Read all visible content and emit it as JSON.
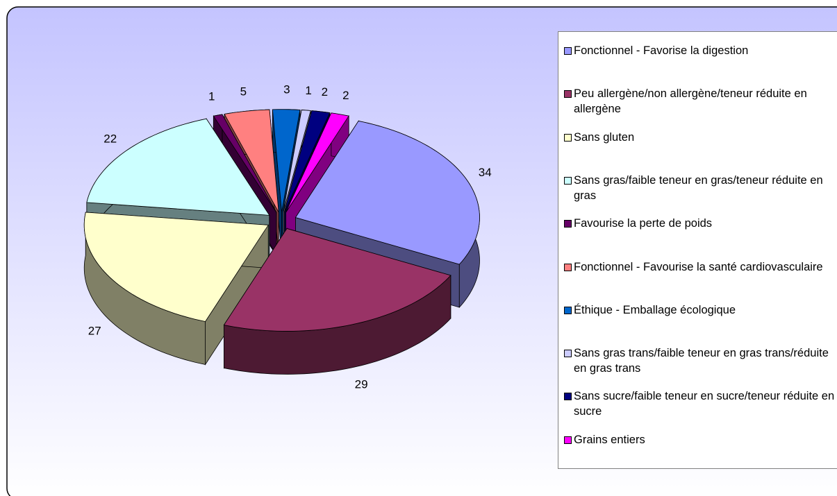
{
  "chart_data": {
    "type": "pie3d",
    "categories": [
      "Fonctionnel - Favorise la digestion",
      "Peu allergène/non allergène/teneur réduite en allergène",
      "Sans gluten",
      "Sans gras/faible teneur en gras/teneur réduite en gras",
      "Favourise la perte de poids",
      "Fonctionnel - Favourise la santé cardiovasculaire",
      "Éthique - Emballage écologique",
      "Sans gras trans/faible teneur en gras trans/réduite en gras trans",
      "Sans sucre/faible teneur en sucre/teneur réduite en sucre",
      "Grains entiers"
    ],
    "values": [
      34,
      29,
      27,
      22,
      1,
      5,
      3,
      1,
      2,
      2
    ],
    "colors": [
      "#9999ff",
      "#993366",
      "#ffffcc",
      "#ccffff",
      "#660066",
      "#ff8080",
      "#0066cc",
      "#ccccff",
      "#000080",
      "#ff00ff"
    ],
    "legend": "right"
  }
}
